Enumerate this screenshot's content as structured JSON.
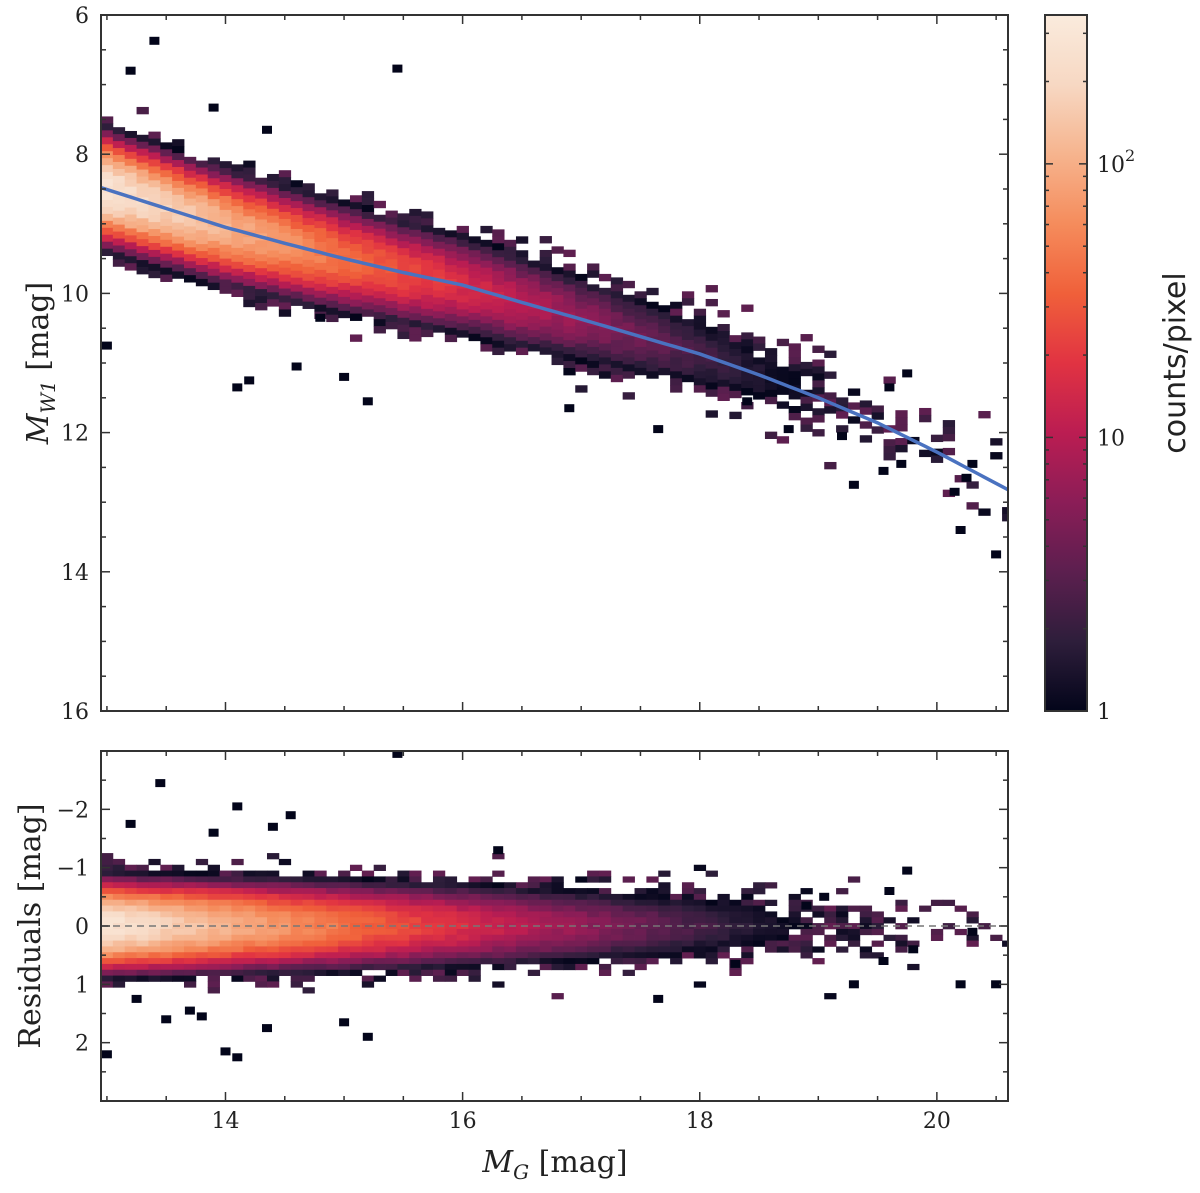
{
  "chart_data": [
    {
      "type": "heatmap",
      "panel": "top",
      "xlabel_main": "M",
      "xlabel_sub": "G",
      "xlabel_unit": " [mag]",
      "ylabel_main": "M",
      "ylabel_sub": "W1",
      "ylabel_unit": " [mag]",
      "xlim": [
        12.95,
        20.6
      ],
      "ylim": [
        16,
        6
      ],
      "y_ticks": [
        6,
        8,
        10,
        12,
        14,
        16
      ],
      "y_tick_labels": [
        "6",
        "8",
        "10",
        "12",
        "14",
        "16"
      ],
      "fit_curve": {
        "name": "fit",
        "color": "#4a72c0",
        "x": [
          12.95,
          13.5,
          14,
          14.5,
          15,
          15.5,
          16,
          16.5,
          17,
          17.5,
          18,
          18.5,
          19,
          19.5,
          20,
          20.6
        ],
        "y": [
          8.48,
          8.78,
          9.05,
          9.28,
          9.5,
          9.7,
          9.88,
          10.13,
          10.37,
          10.62,
          10.87,
          11.17,
          11.5,
          11.86,
          12.28,
          12.82
        ]
      },
      "density_model": {
        "ridge_width_mag": 0.28,
        "count_max": 300,
        "bin_width_mag": 0.1,
        "bin_height_mag": 0.1
      },
      "outlier_points": [
        {
          "x": 13.0,
          "y": 10.75
        },
        {
          "x": 13.2,
          "y": 6.8
        },
        {
          "x": 13.4,
          "y": 6.37
        },
        {
          "x": 13.9,
          "y": 7.33
        },
        {
          "x": 14.1,
          "y": 11.35
        },
        {
          "x": 14.2,
          "y": 11.25
        },
        {
          "x": 14.35,
          "y": 7.65
        },
        {
          "x": 14.6,
          "y": 11.05
        },
        {
          "x": 14.8,
          "y": 10.35
        },
        {
          "x": 15.0,
          "y": 11.2
        },
        {
          "x": 15.2,
          "y": 11.55
        },
        {
          "x": 15.45,
          "y": 6.77
        },
        {
          "x": 16.9,
          "y": 11.65
        },
        {
          "x": 17.65,
          "y": 11.95
        },
        {
          "x": 18.4,
          "y": 11.55
        },
        {
          "x": 18.75,
          "y": 11.95
        },
        {
          "x": 19.2,
          "y": 12.05
        },
        {
          "x": 19.3,
          "y": 12.75
        },
        {
          "x": 19.55,
          "y": 12.55
        },
        {
          "x": 19.75,
          "y": 11.15
        },
        {
          "x": 19.6,
          "y": 11.35
        },
        {
          "x": 19.7,
          "y": 12.45
        },
        {
          "x": 20.15,
          "y": 12.85
        },
        {
          "x": 20.2,
          "y": 13.4
        },
        {
          "x": 20.3,
          "y": 12.45
        },
        {
          "x": 20.25,
          "y": 12.65
        },
        {
          "x": 20.5,
          "y": 13.75
        }
      ]
    },
    {
      "type": "heatmap",
      "panel": "bottom",
      "ylabel": "Residuals [mag]",
      "xlabel_main": "M",
      "xlabel_sub": "G",
      "xlabel_unit": " [mag]",
      "xlim": [
        12.95,
        20.6
      ],
      "ylim": [
        3.0,
        -3.0
      ],
      "x_ticks": [
        14,
        16,
        18,
        20
      ],
      "x_tick_labels": [
        "14",
        "16",
        "18",
        "20"
      ],
      "y_ticks": [
        -2,
        -1,
        0,
        1,
        2
      ],
      "y_tick_labels": [
        "−2",
        "−1",
        "0",
        "1",
        "2"
      ],
      "zero_line": {
        "y": 0,
        "style": "dashed",
        "color": "#777777"
      },
      "outlier_points": [
        {
          "x": 13.0,
          "y": 2.2
        },
        {
          "x": 13.2,
          "y": -1.75
        },
        {
          "x": 13.25,
          "y": 1.25
        },
        {
          "x": 13.45,
          "y": -2.45
        },
        {
          "x": 13.5,
          "y": 1.6
        },
        {
          "x": 13.7,
          "y": 1.45
        },
        {
          "x": 13.8,
          "y": 1.55
        },
        {
          "x": 13.9,
          "y": -1.6
        },
        {
          "x": 14.0,
          "y": 2.15
        },
        {
          "x": 14.1,
          "y": -2.05
        },
        {
          "x": 14.1,
          "y": 2.25
        },
        {
          "x": 14.35,
          "y": 1.75
        },
        {
          "x": 14.4,
          "y": -1.7
        },
        {
          "x": 14.55,
          "y": -1.9
        },
        {
          "x": 15.0,
          "y": 1.65
        },
        {
          "x": 15.2,
          "y": 1.9
        },
        {
          "x": 15.45,
          "y": -2.95
        },
        {
          "x": 16.3,
          "y": -1.3
        },
        {
          "x": 17.65,
          "y": 1.25
        },
        {
          "x": 18.3,
          "y": 0.65
        },
        {
          "x": 19.3,
          "y": 1.0
        },
        {
          "x": 19.55,
          "y": 0.6
        },
        {
          "x": 19.75,
          "y": -0.95
        },
        {
          "x": 19.8,
          "y": 0.4
        },
        {
          "x": 20.2,
          "y": 1.0
        },
        {
          "x": 20.3,
          "y": 0.1
        },
        {
          "x": 20.5,
          "y": 1.0
        },
        {
          "x": 19.6,
          "y": -0.6
        },
        {
          "x": 18.9,
          "y": -0.35
        },
        {
          "x": 19.05,
          "y": -0.5
        }
      ]
    },
    {
      "type": "colorbar",
      "label": "counts/pixel",
      "scale": "log",
      "range": [
        1,
        350
      ],
      "ticks": [
        {
          "value": 1,
          "label": "1"
        },
        {
          "value": 10,
          "label": "10"
        },
        {
          "value": 100,
          "label_base": "10",
          "label_exp": "2"
        }
      ],
      "colormap": [
        "#03051a",
        "#2e1e3b",
        "#5c1f4f",
        "#8b1d57",
        "#bb1d52",
        "#e13342",
        "#f0603a",
        "#f58c5c",
        "#f6b48e",
        "#f7d8c3",
        "#faebdd"
      ]
    }
  ]
}
